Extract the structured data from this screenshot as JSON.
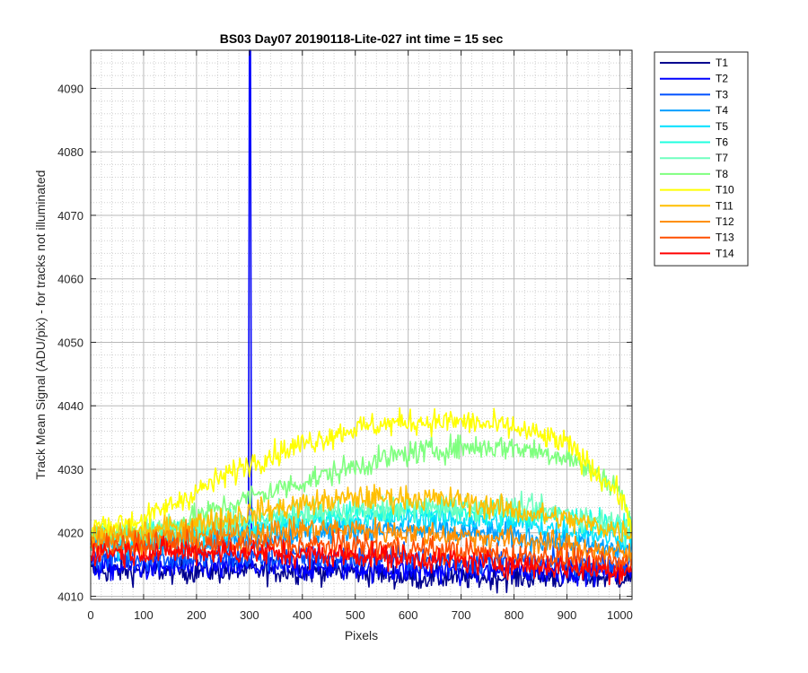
{
  "chart_data": {
    "type": "line",
    "title": "BS03 Day07 20190118-Lite-027 int time = 15 sec",
    "xlabel": "Pixels",
    "ylabel": "Track Mean Signal (ADU/pix) - for tracks not illuminated",
    "xlim": [
      0,
      1023
    ],
    "ylim": [
      4009.5,
      4096
    ],
    "xticks": [
      0,
      100,
      200,
      300,
      400,
      500,
      600,
      700,
      800,
      900,
      1000
    ],
    "yticks": [
      4010,
      4020,
      4030,
      4040,
      4050,
      4060,
      4070,
      4080,
      4090
    ],
    "grid": "major and minor (dotted)",
    "legend_position": "outside-right",
    "series": [
      {
        "name": "T1",
        "color": "#00008f",
        "x": [
          0,
          100,
          200,
          300,
          400,
          500,
          600,
          700,
          800,
          900,
          1023
        ],
        "y": [
          4014,
          4014,
          4014,
          4014,
          4014,
          4014,
          4013,
          4013,
          4013,
          4013,
          4013
        ]
      },
      {
        "name": "T2",
        "color": "#0000ff",
        "x": [
          0,
          100,
          200,
          299,
          300,
          301,
          302,
          400,
          500,
          600,
          700,
          800,
          900,
          1023
        ],
        "y": [
          4014.5,
          4014.5,
          4014.5,
          4014.5,
          4096,
          4096,
          4014.5,
          4014.5,
          4014.5,
          4014,
          4014,
          4014,
          4014,
          4014
        ]
      },
      {
        "name": "T3",
        "color": "#0050ff",
        "x": [
          0,
          100,
          200,
          300,
          400,
          500,
          600,
          700,
          800,
          900,
          1023
        ],
        "y": [
          4016,
          4016,
          4016,
          4016,
          4016,
          4016,
          4016,
          4015.5,
          4015.5,
          4015,
          4015
        ]
      },
      {
        "name": "T4",
        "color": "#009fff",
        "x": [
          0,
          100,
          200,
          300,
          400,
          500,
          600,
          700,
          800,
          900,
          1023
        ],
        "y": [
          4018,
          4018,
          4018.5,
          4019,
          4020,
          4020.5,
          4020.5,
          4020,
          4019.5,
          4018.5,
          4017
        ]
      },
      {
        "name": "T5",
        "color": "#00dfff",
        "x": [
          0,
          100,
          200,
          300,
          400,
          500,
          600,
          700,
          800,
          900,
          1023
        ],
        "y": [
          4018,
          4018.5,
          4019.5,
          4020.5,
          4021.5,
          4022,
          4022.5,
          4022,
          4021.5,
          4020.5,
          4019
        ]
      },
      {
        "name": "T6",
        "color": "#20ffdf",
        "x": [
          0,
          100,
          200,
          300,
          400,
          500,
          600,
          700,
          800,
          900,
          1023
        ],
        "y": [
          4019,
          4019.5,
          4020.5,
          4021.5,
          4022.5,
          4023,
          4023.5,
          4023.5,
          4023,
          4022.5,
          4020.5
        ]
      },
      {
        "name": "T7",
        "color": "#70ffbf",
        "x": [
          0,
          100,
          200,
          300,
          400,
          500,
          600,
          700,
          800,
          900,
          1023
        ],
        "y": [
          4019.5,
          4020,
          4021,
          4022,
          4023,
          4023.5,
          4024,
          4024,
          4024,
          4023,
          4021
        ]
      },
      {
        "name": "T8",
        "color": "#7fff7f",
        "x": [
          0,
          100,
          200,
          300,
          400,
          500,
          600,
          700,
          800,
          900,
          1000,
          1023
        ],
        "y": [
          4020,
          4020,
          4022.5,
          4025.5,
          4028,
          4030.5,
          4032.5,
          4033.5,
          4033.5,
          4032,
          4027,
          4020
        ]
      },
      {
        "name": "T10",
        "color": "#ffff00",
        "x": [
          0,
          100,
          200,
          300,
          400,
          500,
          600,
          700,
          800,
          900,
          1000,
          1023
        ],
        "y": [
          4021,
          4022,
          4026.5,
          4031,
          4034,
          4036.5,
          4037.5,
          4037.5,
          4036.5,
          4034,
          4026,
          4021
        ]
      },
      {
        "name": "T11",
        "color": "#ffbf00",
        "x": [
          0,
          100,
          200,
          300,
          400,
          500,
          600,
          700,
          800,
          900,
          1023
        ],
        "y": [
          4019.5,
          4020,
          4021.5,
          4023,
          4024.5,
          4025.5,
          4025.5,
          4025,
          4023.5,
          4022,
          4020
        ]
      },
      {
        "name": "T12",
        "color": "#ff8f00",
        "x": [
          0,
          100,
          200,
          300,
          400,
          500,
          600,
          700,
          800,
          900,
          1023
        ],
        "y": [
          4019,
          4019,
          4019.5,
          4020,
          4020.5,
          4020.5,
          4020,
          4019.5,
          4019,
          4018,
          4016.5
        ]
      },
      {
        "name": "T13",
        "color": "#ff4f00",
        "x": [
          0,
          100,
          200,
          300,
          400,
          500,
          600,
          700,
          800,
          900,
          1023
        ],
        "y": [
          4018,
          4018,
          4018,
          4018,
          4018,
          4018,
          4017.5,
          4017,
          4016.5,
          4016,
          4015
        ]
      },
      {
        "name": "T14",
        "color": "#ff0000",
        "x": [
          0,
          100,
          200,
          300,
          400,
          500,
          600,
          700,
          800,
          900,
          1023
        ],
        "y": [
          4017,
          4017,
          4017,
          4017,
          4016.5,
          4016.5,
          4016,
          4015.5,
          4015,
          4014.5,
          4014
        ]
      }
    ]
  }
}
